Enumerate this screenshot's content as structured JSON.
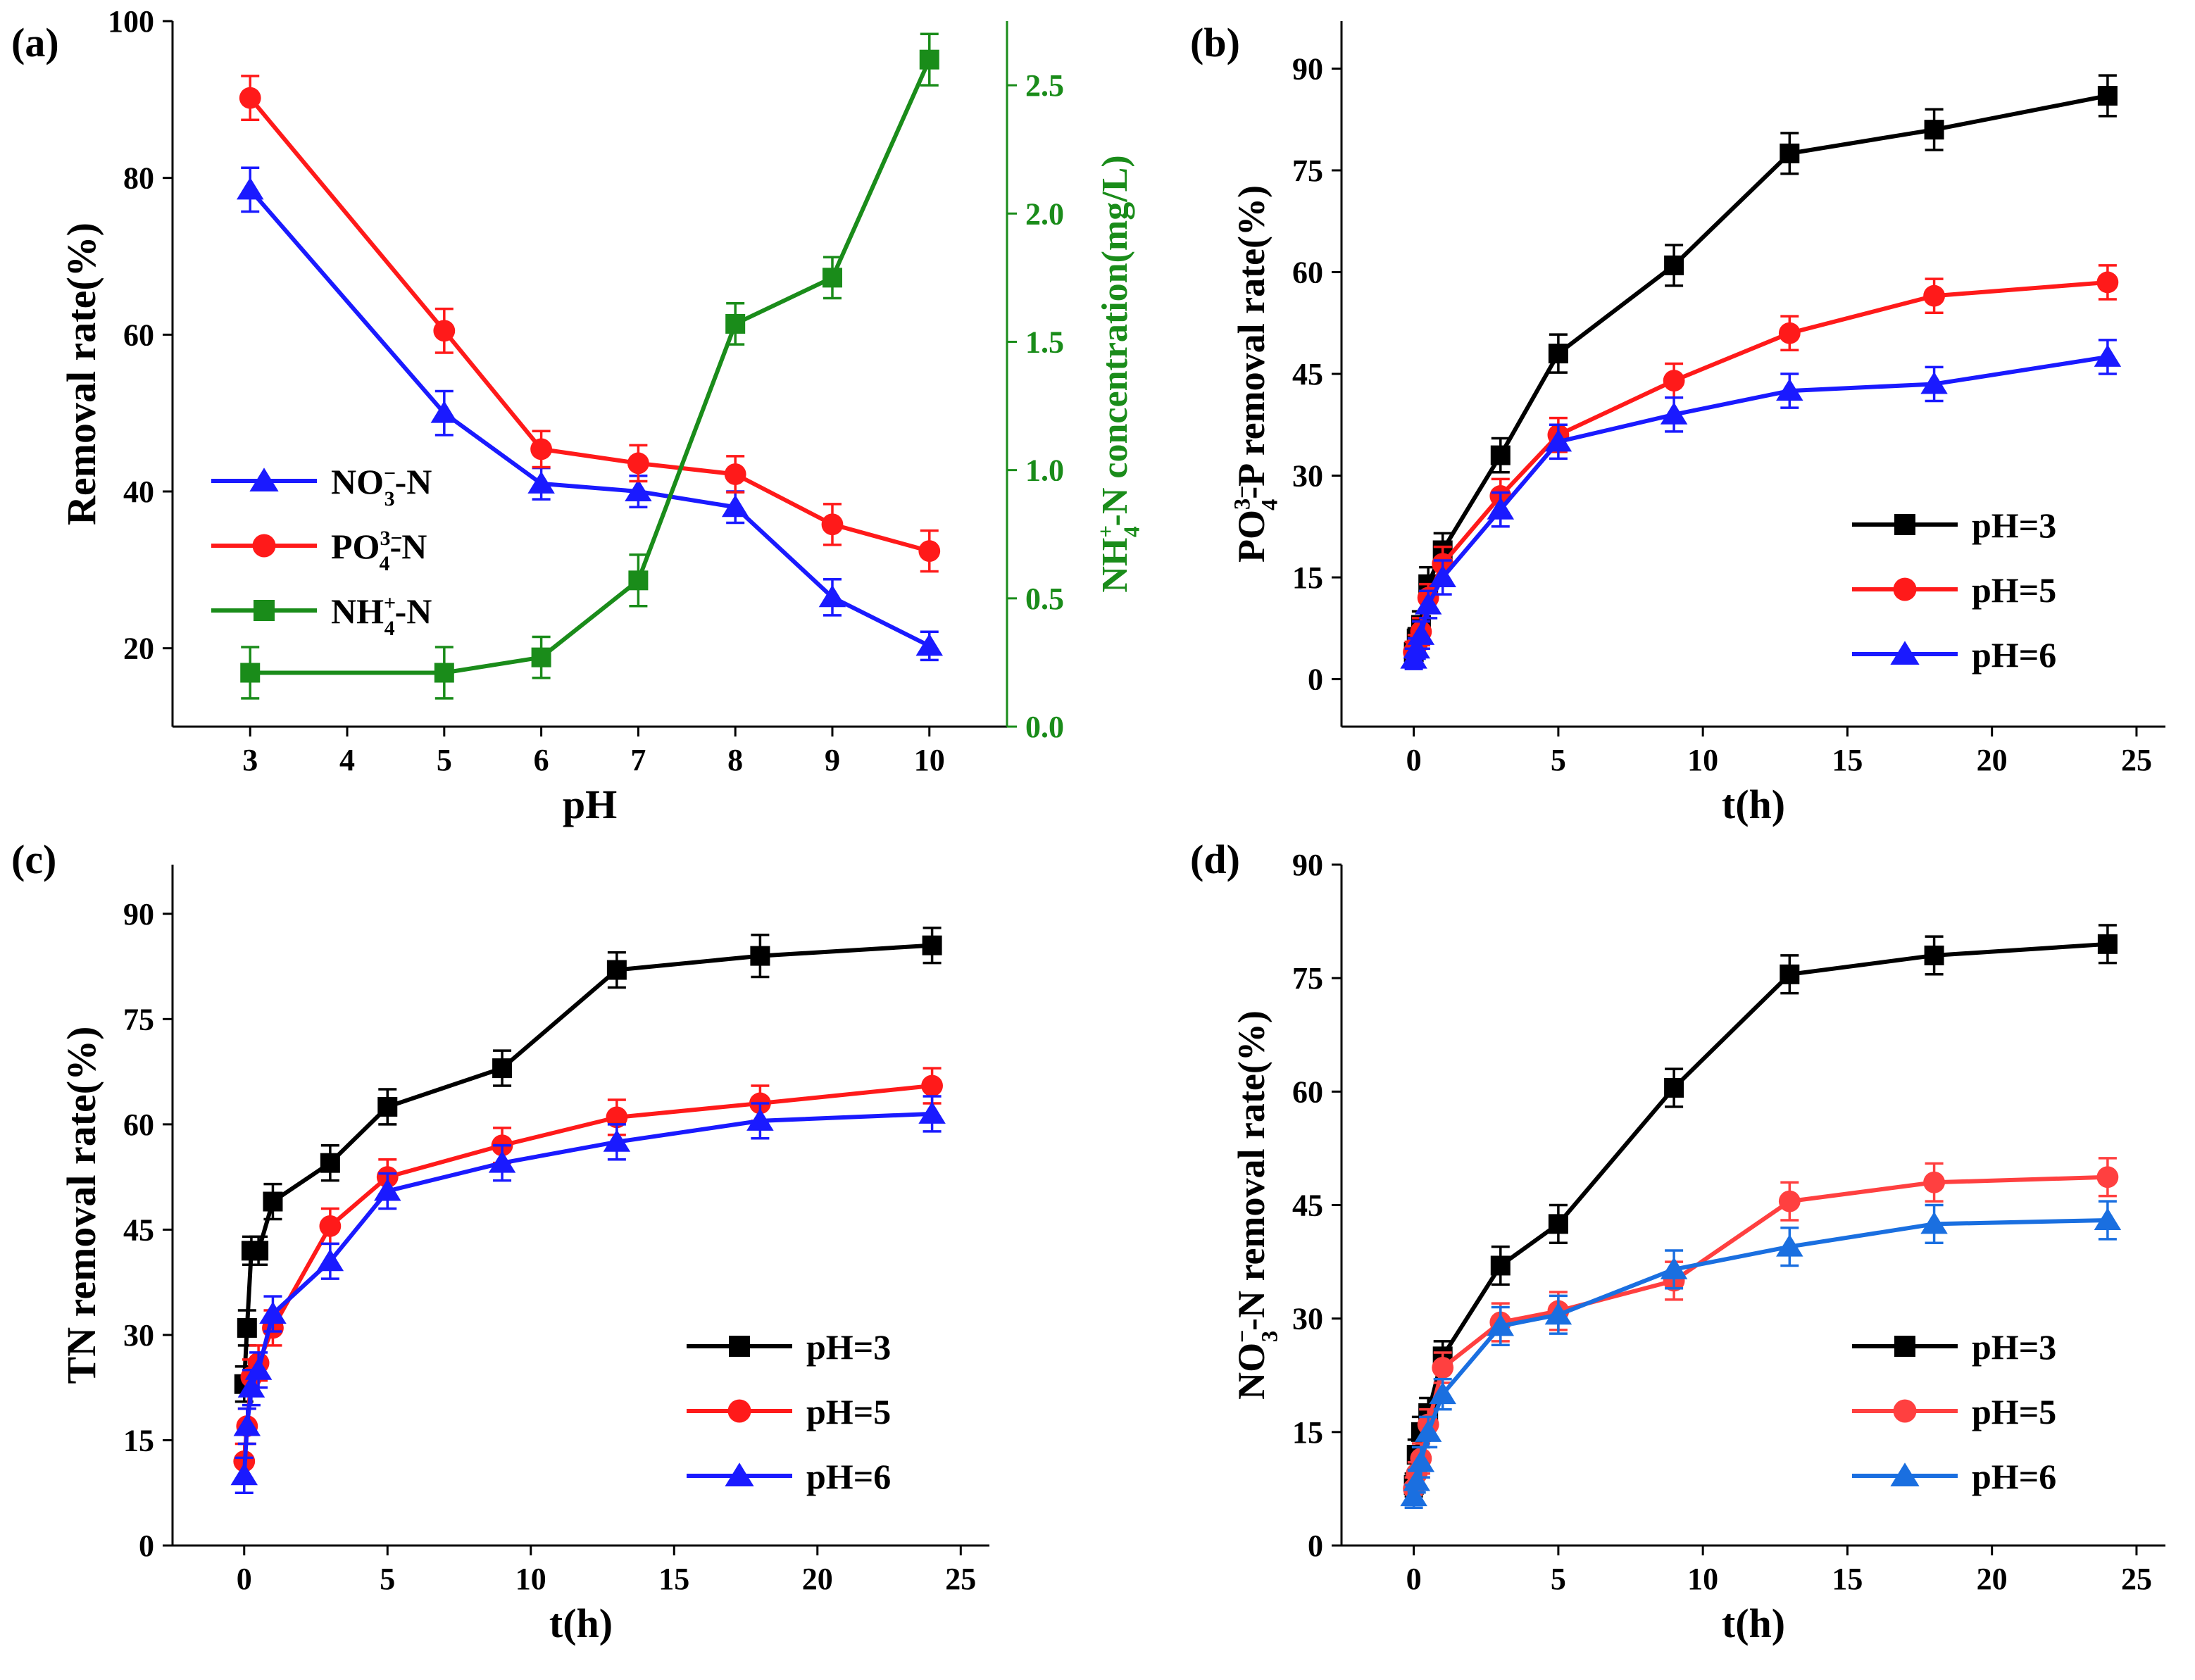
{
  "chart_data": [
    {
      "id": "a",
      "type": "line",
      "panel_label": "(a)",
      "xlabel": "pH",
      "ylabel": "Removal rate(%)",
      "y2label": "NH4+-N concentration(mg/L)",
      "xlim": [
        2.2,
        10.8
      ],
      "ylim": [
        10,
        100
      ],
      "y2lim": [
        0,
        2.75
      ],
      "xticks": [
        3,
        4,
        5,
        6,
        7,
        8,
        9,
        10
      ],
      "yticks": [
        20,
        40,
        60,
        80,
        100
      ],
      "y2ticks": [
        0.0,
        0.5,
        1.0,
        1.5,
        2.0,
        2.5
      ],
      "y2color": "#1a8c1a",
      "legend": "left",
      "series": [
        {
          "name": "NO3−-N",
          "label_main": "NO",
          "label_sub": "3",
          "label_sup": "−",
          "label_tail": "-N",
          "color": "#1a1aff",
          "marker": "triangle",
          "axis": "left",
          "x": [
            3,
            5,
            6,
            7,
            8,
            9,
            10
          ],
          "y": [
            78.5,
            50,
            41,
            40,
            38,
            26.5,
            20.3
          ],
          "err": [
            2.8,
            2.8,
            2,
            2,
            2,
            2.3,
            1.8
          ]
        },
        {
          "name": "PO43−-N",
          "label_main": "PO",
          "label_sub": "4",
          "label_sup": "3−",
          "label_tail": "-N",
          "color": "#ff1a1a",
          "marker": "circle",
          "axis": "left",
          "x": [
            3,
            5,
            6,
            7,
            8,
            9,
            10
          ],
          "y": [
            90.2,
            60.5,
            45.4,
            43.6,
            42.2,
            35.8,
            32.4
          ],
          "err": [
            2.8,
            2.8,
            2.3,
            2.3,
            2.3,
            2.6,
            2.6
          ]
        },
        {
          "name": "NH4+-N",
          "label_main": "NH",
          "label_sub": "4",
          "label_sup": "+",
          "label_tail": "-N",
          "color": "#1a8c1a",
          "marker": "square",
          "axis": "right",
          "x": [
            3,
            5,
            6,
            7,
            8,
            9,
            10
          ],
          "y": [
            0.21,
            0.21,
            0.27,
            0.57,
            1.57,
            1.75,
            2.6
          ],
          "err": [
            0.1,
            0.1,
            0.08,
            0.1,
            0.08,
            0.08,
            0.1
          ]
        }
      ]
    },
    {
      "id": "b",
      "type": "line",
      "panel_label": "(b)",
      "xlabel": "t(h)",
      "ylabel": "PO43−-P removal rate(%)",
      "ylabel_parts": {
        "main": "PO",
        "sub": "4",
        "sup": "3−",
        "tail": "-P removal rate(%)"
      },
      "xlim": [
        -2.5,
        26
      ],
      "ylim": [
        -7,
        97
      ],
      "xticks": [
        0,
        5,
        10,
        15,
        20,
        25
      ],
      "yticks": [
        0,
        15,
        30,
        45,
        60,
        75,
        90
      ],
      "legend": "bottom-right",
      "series": [
        {
          "name": "pH=3",
          "color": "#000000",
          "marker": "square",
          "x": [
            0,
            0.1,
            0.25,
            0.5,
            1,
            3,
            5,
            9,
            13,
            18,
            24
          ],
          "y": [
            4,
            6,
            8,
            14,
            19,
            33,
            48,
            61,
            77.5,
            81,
            86
          ],
          "err": [
            1.5,
            1.5,
            2,
            2.5,
            2.5,
            2.5,
            2.8,
            3,
            3,
            3,
            3
          ]
        },
        {
          "name": "pH=5",
          "color": "#ff1a1a",
          "marker": "circle",
          "x": [
            0,
            0.1,
            0.25,
            0.5,
            1,
            3,
            5,
            9,
            13,
            18,
            24
          ],
          "y": [
            4,
            5,
            7,
            12,
            17,
            27,
            36,
            44,
            51,
            56.5,
            58.5
          ],
          "err": [
            1.5,
            1.5,
            2,
            2,
            2.5,
            2.5,
            2.5,
            2.5,
            2.5,
            2.5,
            2.5
          ]
        },
        {
          "name": "pH=6",
          "color": "#1a1aff",
          "marker": "triangle",
          "x": [
            0,
            0.1,
            0.25,
            0.5,
            1,
            3,
            5,
            9,
            13,
            18,
            24
          ],
          "y": [
            3,
            4.5,
            6.5,
            11,
            15,
            25,
            35,
            39,
            42.5,
            43.5,
            47.5
          ],
          "err": [
            1.5,
            1.5,
            2,
            2,
            2.5,
            2.5,
            2.5,
            2.5,
            2.5,
            2.5,
            2.5
          ]
        }
      ]
    },
    {
      "id": "c",
      "type": "line",
      "panel_label": "(c)",
      "xlabel": "t(h)",
      "ylabel": "TN removal rate(%)",
      "xlim": [
        -2.5,
        26
      ],
      "ylim": [
        0,
        97
      ],
      "xticks": [
        0,
        5,
        10,
        15,
        20,
        25
      ],
      "yticks": [
        0,
        15,
        30,
        45,
        60,
        75,
        90
      ],
      "legend": "bottom-right",
      "series": [
        {
          "name": "pH=3",
          "color": "#000000",
          "marker": "square",
          "x": [
            0,
            0.1,
            0.25,
            0.5,
            1,
            3,
            5,
            9,
            13,
            18,
            24
          ],
          "y": [
            23,
            31,
            42,
            42,
            49,
            54.5,
            62.5,
            68,
            82,
            84,
            85.5
          ],
          "err": [
            2.5,
            2.5,
            2,
            2,
            2.5,
            2.5,
            2.5,
            2.5,
            2.5,
            3,
            2.5
          ]
        },
        {
          "name": "pH=5",
          "color": "#ff1a1a",
          "marker": "circle",
          "x": [
            0,
            0.1,
            0.25,
            0.5,
            1,
            3,
            5,
            9,
            13,
            18,
            24
          ],
          "y": [
            12,
            17,
            24,
            26,
            31,
            45.5,
            52.5,
            57,
            61,
            63,
            65.5
          ],
          "err": [
            2.5,
            2.5,
            2.5,
            2.5,
            2.5,
            2.5,
            2.5,
            2.5,
            2.5,
            2.5,
            2.5
          ]
        },
        {
          "name": "pH=6",
          "color": "#1a1aff",
          "marker": "triangle",
          "x": [
            0,
            0.1,
            0.25,
            0.5,
            1,
            3,
            5,
            9,
            13,
            18,
            24
          ],
          "y": [
            10,
            17,
            22.5,
            25,
            33,
            40.5,
            50.5,
            54.5,
            57.5,
            60.5,
            61.5
          ],
          "err": [
            2.5,
            2.5,
            2.5,
            2.5,
            2.5,
            2.5,
            2.5,
            2.5,
            2.5,
            2.5,
            2.5
          ]
        }
      ]
    },
    {
      "id": "d",
      "type": "line",
      "panel_label": "(d)",
      "xlabel": "t(h)",
      "ylabel": "NO3−-N removal rate(%)",
      "ylabel_parts": {
        "main": "NO",
        "sub": "3",
        "sup": "−",
        "tail": "-N removal rate(%)"
      },
      "xlim": [
        -2.5,
        26
      ],
      "ylim": [
        0,
        90
      ],
      "xticks": [
        0,
        5,
        10,
        15,
        20,
        25
      ],
      "yticks": [
        0,
        15,
        30,
        45,
        60,
        75,
        90
      ],
      "legend": "bottom-right",
      "series": [
        {
          "name": "pH=3",
          "color": "#000000",
          "marker": "square",
          "x": [
            0,
            0.1,
            0.25,
            0.5,
            1,
            3,
            5,
            9,
            13,
            18,
            24
          ],
          "y": [
            8,
            12,
            15,
            17.5,
            25,
            37,
            42.5,
            60.5,
            75.5,
            78,
            79.5
          ],
          "err": [
            1.5,
            2,
            2,
            2,
            2,
            2.5,
            2.5,
            2.5,
            2.5,
            2.5,
            2.5
          ]
        },
        {
          "name": "pH=5",
          "color": "#ff4040",
          "marker": "circle",
          "x": [
            0,
            0.1,
            0.25,
            0.5,
            1,
            3,
            5,
            9,
            13,
            18,
            24
          ],
          "y": [
            7.5,
            9.5,
            11.5,
            16,
            23.5,
            29.5,
            31,
            35,
            45.5,
            48,
            48.7
          ],
          "err": [
            1.5,
            1.5,
            2,
            2,
            2,
            2.5,
            2.5,
            2.5,
            2.5,
            2.5,
            2.5
          ]
        },
        {
          "name": "pH=6",
          "color": "#1a6fe0",
          "marker": "triangle",
          "x": [
            0,
            0.1,
            0.25,
            0.5,
            1,
            3,
            5,
            9,
            13,
            18,
            24
          ],
          "y": [
            6.5,
            8.5,
            11,
            15,
            20,
            29,
            30.5,
            36.5,
            39.5,
            42.5,
            43
          ],
          "err": [
            1.5,
            1.5,
            2,
            2,
            2,
            2.5,
            2.5,
            2.5,
            2.5,
            2.5,
            2.5
          ]
        }
      ]
    }
  ]
}
